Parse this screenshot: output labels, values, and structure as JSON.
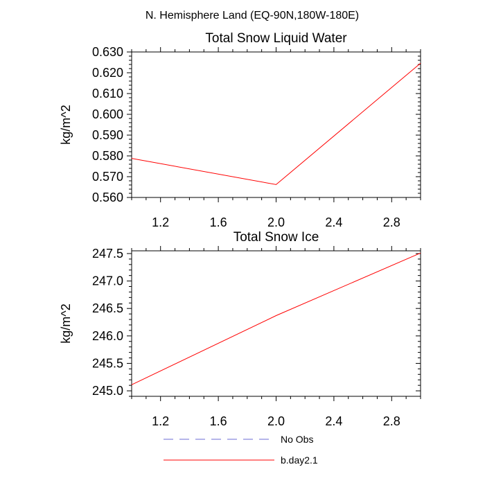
{
  "figure": {
    "suptitle": "N. Hemisphere Land (EQ-90N,180W-180E)"
  },
  "colors": {
    "obs": "#6b6bd6",
    "model": "#ff0000",
    "axis": "#000000"
  },
  "chart_data": [
    {
      "type": "line",
      "title": "Total Snow Liquid Water",
      "xlabel": "",
      "ylabel": "kg/m^2",
      "xlim": [
        1.0,
        3.0
      ],
      "ylim": [
        0.56,
        0.63
      ],
      "xticks": [
        1.2,
        1.6,
        2.0,
        2.4,
        2.8
      ],
      "xtick_labels": [
        "1.2",
        "1.6",
        "2.0",
        "2.4",
        "2.8"
      ],
      "yticks": [
        0.56,
        0.57,
        0.58,
        0.59,
        0.6,
        0.61,
        0.62,
        0.63
      ],
      "ytick_labels": [
        "0.560",
        "0.570",
        "0.580",
        "0.590",
        "0.600",
        "0.610",
        "0.620",
        "0.630"
      ],
      "series": [
        {
          "name": "b.day2.1",
          "x": [
            1,
            2,
            3
          ],
          "y": [
            0.5788,
            0.5662,
            0.6246
          ]
        }
      ]
    },
    {
      "type": "line",
      "title": "Total Snow Ice",
      "xlabel": "",
      "ylabel": "kg/m^2",
      "xlim": [
        1.0,
        3.0
      ],
      "ylim": [
        244.9,
        247.55
      ],
      "xticks": [
        1.2,
        1.6,
        2.0,
        2.4,
        2.8
      ],
      "xtick_labels": [
        "1.2",
        "1.6",
        "2.0",
        "2.4",
        "2.8"
      ],
      "yticks": [
        245.0,
        245.5,
        246.0,
        246.5,
        247.0,
        247.5
      ],
      "ytick_labels": [
        "245.0",
        "245.5",
        "246.0",
        "246.5",
        "247.0",
        "247.5"
      ],
      "series": [
        {
          "name": "b.day2.1",
          "x": [
            1,
            2,
            3
          ],
          "y": [
            245.11,
            246.37,
            247.51
          ]
        }
      ]
    }
  ],
  "legend": {
    "position": "bottom-center",
    "entries": [
      {
        "label": "No Obs",
        "style": "dashed",
        "color_key": "obs"
      },
      {
        "label": "b.day2.1",
        "style": "solid",
        "color_key": "model"
      }
    ]
  }
}
